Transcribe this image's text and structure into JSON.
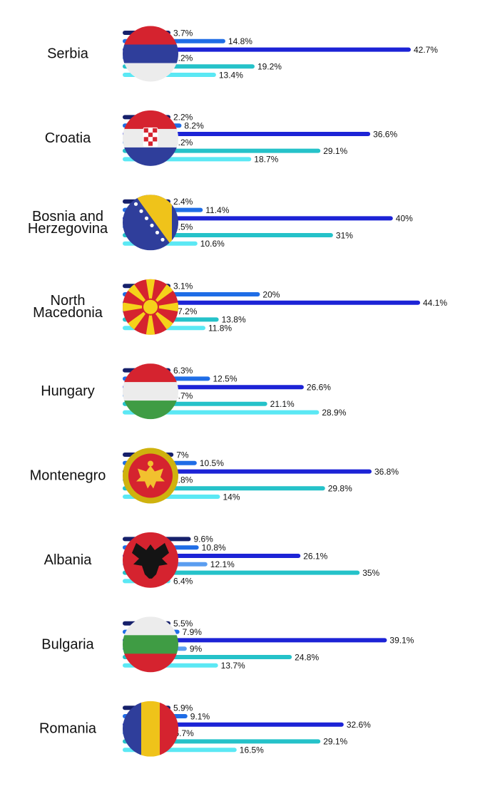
{
  "chart_data": {
    "type": "bar",
    "orientation": "horizontal",
    "value_suffix": "%",
    "series_colors": [
      "#16206b",
      "#1f6de6",
      "#1c23d6",
      "#5b9ef0",
      "#25c2c9",
      "#5be8f4"
    ],
    "groups": [
      {
        "name": "Serbia",
        "label_lines": [
          "Serbia"
        ],
        "flag": "serbia-flag",
        "values": [
          3.7,
          14.8,
          42.7,
          6.2,
          19.2,
          13.4
        ],
        "labels": [
          "3.7%",
          "14.8%",
          "42.7%",
          "6.2%",
          "19.2%",
          "13.4%"
        ]
      },
      {
        "name": "Croatia",
        "label_lines": [
          "Croatia"
        ],
        "flag": "croatia-flag",
        "values": [
          2.2,
          8.2,
          36.6,
          5.2,
          29.1,
          18.7
        ],
        "labels": [
          "2.2%",
          "8.2%",
          "36.6%",
          "5.2%",
          "29.1%",
          "18.7%"
        ]
      },
      {
        "name": "Bosnia and Herzegovina",
        "label_lines": [
          "Bosnia and",
          "Herzegovina"
        ],
        "flag": "bosnia-flag",
        "values": [
          2.4,
          11.4,
          40,
          4.5,
          31,
          10.6
        ],
        "labels": [
          "2.4%",
          "11.4%",
          "40%",
          "4.5%",
          "31%",
          "10.6%"
        ]
      },
      {
        "name": "North Macedonia",
        "label_lines": [
          "North",
          "Macedonia"
        ],
        "flag": "north-macedonia-flag",
        "values": [
          3.1,
          20,
          44.1,
          7.2,
          13.8,
          11.8
        ],
        "labels": [
          "3.1%",
          "20%",
          "44.1%",
          "7.2%",
          "13.8%",
          "11.8%"
        ]
      },
      {
        "name": "Hungary",
        "label_lines": [
          "Hungary"
        ],
        "flag": "hungary-flag",
        "values": [
          6.3,
          12.5,
          26.6,
          4.7,
          21.1,
          28.9
        ],
        "labels": [
          "6.3%",
          "12.5%",
          "26.6%",
          "4.7%",
          "21.1%",
          "28.9%"
        ]
      },
      {
        "name": "Montenegro",
        "label_lines": [
          "Montenegro"
        ],
        "flag": "montenegro-flag",
        "values": [
          7,
          10.5,
          36.8,
          1.8,
          29.8,
          14
        ],
        "labels": [
          "7%",
          "10.5%",
          "36.8%",
          "1.8%",
          "29.8%",
          "14%"
        ]
      },
      {
        "name": "Albania",
        "label_lines": [
          "Albania"
        ],
        "flag": "albania-flag",
        "values": [
          9.6,
          10.8,
          26.1,
          12.1,
          35,
          6.4
        ],
        "labels": [
          "9.6%",
          "10.8%",
          "26.1%",
          "12.1%",
          "35%",
          "6.4%"
        ]
      },
      {
        "name": "Bulgaria",
        "label_lines": [
          "Bulgaria"
        ],
        "flag": "bulgaria-flag",
        "values": [
          5.5,
          7.9,
          39.1,
          9,
          24.8,
          13.7
        ],
        "labels": [
          "5.5%",
          "7.9%",
          "39.1%",
          "9%",
          "24.8%",
          "13.7%"
        ]
      },
      {
        "name": "Romania",
        "label_lines": [
          "Romania"
        ],
        "flag": "romania-flag",
        "values": [
          5.9,
          9.1,
          32.6,
          6.7,
          29.1,
          16.5
        ],
        "labels": [
          "5.9%",
          "9.1%",
          "32.6%",
          "6.7%",
          "29.1%",
          "16.5%"
        ]
      }
    ]
  }
}
